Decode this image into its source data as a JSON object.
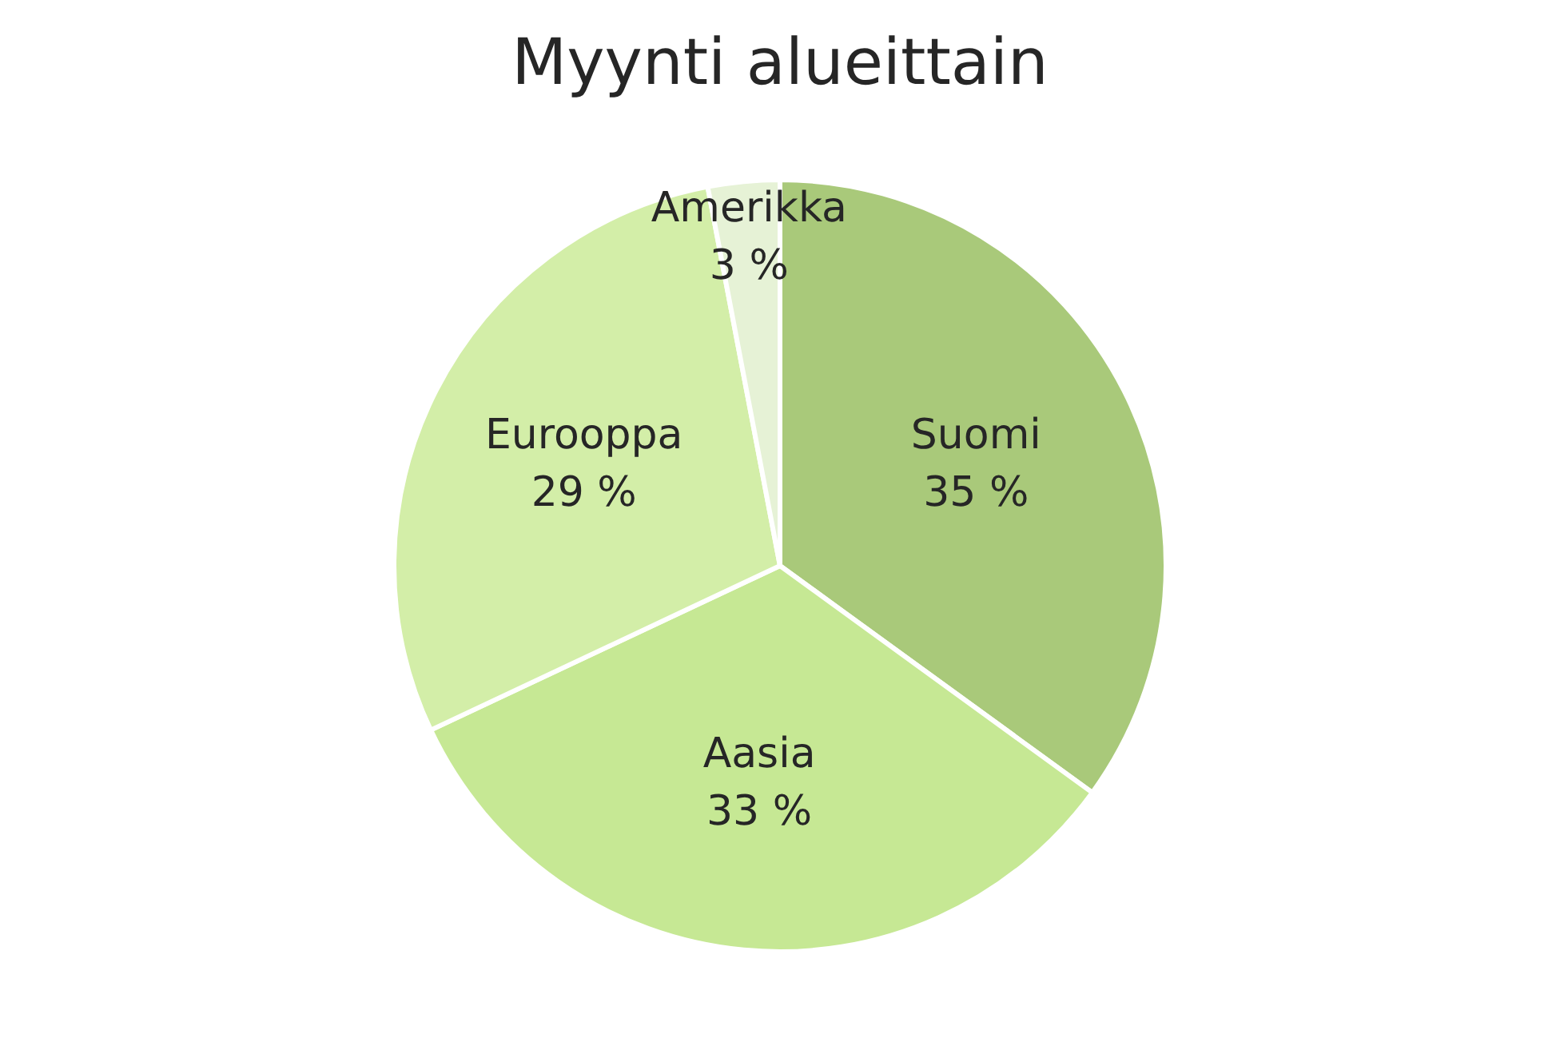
{
  "chart_data": {
    "type": "pie",
    "title": "Myynti alueittain",
    "categories": [
      "Suomi",
      "Aasia",
      "Eurooppa",
      "Amerikka"
    ],
    "values": [
      35,
      33,
      29,
      3
    ],
    "colors": [
      "#a9c97a",
      "#c6e894",
      "#d3eea8",
      "#e6f2d6"
    ],
    "value_labels": [
      "35 %",
      "33 %",
      "29 %",
      "3 %"
    ],
    "legend": false
  }
}
